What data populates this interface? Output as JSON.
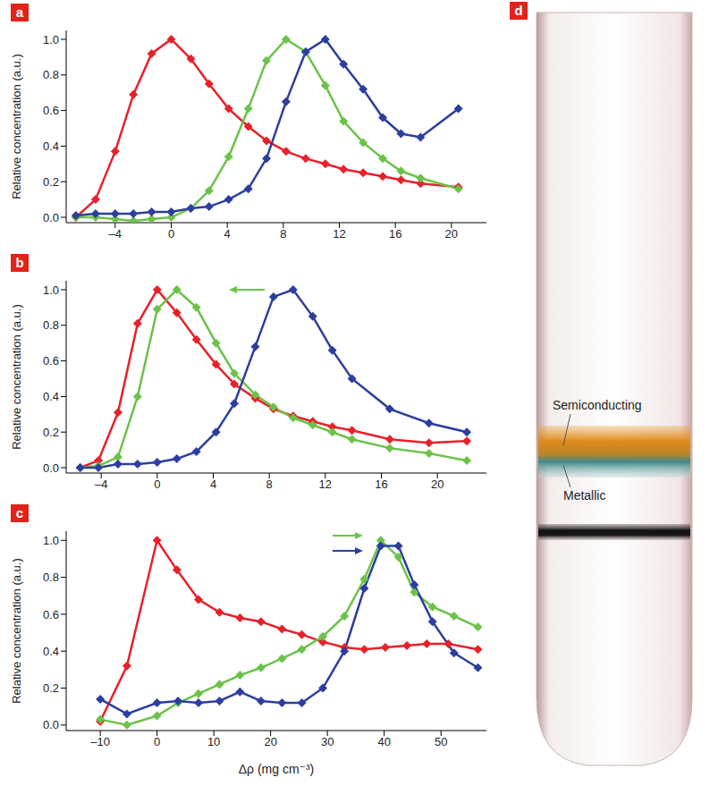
{
  "chart_data": [
    {
      "label": "a",
      "type": "line",
      "y_label": "Relative concentration (a.u.)",
      "xlim": [
        -7.5,
        22.5
      ],
      "xticks": [
        -4,
        0,
        4,
        8,
        12,
        16,
        20
      ],
      "ylim": [
        -0.03,
        1.05
      ],
      "yticks": [
        {
          "value": 0,
          "label": "0.0"
        },
        0.2,
        0.4,
        0.6,
        0.8,
        {
          "value": 1,
          "label": "1.0"
        }
      ],
      "series": [
        {
          "color": "#e8202a",
          "marker": "diamond",
          "x": [
            -6.8,
            -5.4,
            -4.0,
            -2.7,
            -1.4,
            0,
            1.4,
            2.7,
            4.1,
            5.5,
            6.8,
            8.2,
            9.6,
            11.0,
            12.3,
            13.7,
            15.1,
            16.4,
            17.8,
            20.5
          ],
          "values": [
            0.0,
            0.1,
            0.37,
            0.69,
            0.92,
            1.0,
            0.89,
            0.75,
            0.61,
            0.51,
            0.43,
            0.37,
            0.33,
            0.3,
            0.27,
            0.25,
            0.23,
            0.21,
            0.19,
            0.17
          ]
        },
        {
          "color": "#6cc24a",
          "marker": "diamond",
          "x": [
            -6.8,
            -5.4,
            -4.0,
            -2.7,
            -1.4,
            0,
            1.4,
            2.7,
            4.1,
            5.5,
            6.8,
            8.2,
            9.6,
            11.0,
            12.3,
            13.7,
            15.1,
            16.4,
            17.8,
            20.5
          ],
          "values": [
            0.0,
            0.0,
            -0.01,
            -0.02,
            -0.01,
            0.0,
            0.05,
            0.15,
            0.34,
            0.61,
            0.88,
            1.0,
            0.93,
            0.74,
            0.54,
            0.42,
            0.33,
            0.26,
            0.22,
            0.16
          ]
        },
        {
          "color": "#2c3e9e",
          "marker": "diamond",
          "x": [
            -6.8,
            -5.4,
            -4.0,
            -2.7,
            -1.4,
            0,
            1.4,
            2.7,
            4.1,
            5.5,
            6.8,
            8.2,
            9.6,
            11.0,
            12.3,
            13.7,
            15.1,
            16.4,
            17.8,
            20.5
          ],
          "values": [
            0.01,
            0.02,
            0.02,
            0.02,
            0.03,
            0.03,
            0.05,
            0.06,
            0.1,
            0.16,
            0.33,
            0.65,
            0.93,
            1.0,
            0.86,
            0.72,
            0.56,
            0.47,
            0.45,
            0.61
          ]
        }
      ]
    },
    {
      "label": "b",
      "type": "line",
      "y_label": "Relative concentration (a.u.)",
      "xlim": [
        -6.5,
        23.5
      ],
      "xticks": [
        -4,
        0,
        4,
        8,
        12,
        16,
        20
      ],
      "ylim": [
        -0.03,
        1.05
      ],
      "yticks": [
        {
          "value": 0,
          "label": "0.0"
        },
        0.2,
        0.4,
        0.6,
        0.8,
        {
          "value": 1,
          "label": "1.0"
        }
      ],
      "series": [
        {
          "color": "#e8202a",
          "marker": "diamond",
          "x": [
            -5.5,
            -4.2,
            -2.8,
            -1.4,
            0,
            1.4,
            2.8,
            4.2,
            5.5,
            7.0,
            8.3,
            9.7,
            11.1,
            12.5,
            13.9,
            16.6,
            19.4,
            22.1
          ],
          "values": [
            0.0,
            0.04,
            0.31,
            0.81,
            1.0,
            0.87,
            0.72,
            0.58,
            0.47,
            0.39,
            0.33,
            0.29,
            0.26,
            0.23,
            0.21,
            0.16,
            0.14,
            0.15
          ]
        },
        {
          "color": "#6cc24a",
          "marker": "diamond",
          "x": [
            -5.5,
            -4.2,
            -2.8,
            -1.4,
            0,
            1.4,
            2.8,
            4.2,
            5.5,
            7.0,
            8.3,
            9.7,
            11.1,
            12.5,
            13.9,
            16.6,
            19.4,
            22.1
          ],
          "values": [
            0.0,
            0.01,
            0.06,
            0.4,
            0.89,
            1.0,
            0.9,
            0.7,
            0.53,
            0.41,
            0.34,
            0.28,
            0.24,
            0.2,
            0.16,
            0.11,
            0.08,
            0.04
          ]
        },
        {
          "color": "#2c3e9e",
          "marker": "diamond",
          "x": [
            -5.5,
            -4.2,
            -2.8,
            -1.4,
            0,
            1.4,
            2.8,
            4.2,
            5.5,
            7.0,
            8.3,
            9.7,
            11.1,
            12.5,
            13.9,
            16.6,
            19.4,
            22.1
          ],
          "values": [
            0.0,
            0.0,
            0.02,
            0.02,
            0.03,
            0.05,
            0.09,
            0.2,
            0.36,
            0.68,
            0.96,
            1.0,
            0.85,
            0.66,
            0.5,
            0.33,
            0.25,
            0.2
          ]
        }
      ]
    },
    {
      "label": "c",
      "type": "line",
      "y_label": "Relative concentration (a.u.)",
      "x_label": "Δρ (mg cm⁻³)",
      "xlim": [
        -16,
        58
      ],
      "xticks": [
        -10,
        0,
        10,
        20,
        30,
        40,
        50
      ],
      "ylim": [
        -0.03,
        1.05
      ],
      "yticks": [
        {
          "value": 0,
          "label": "0.0"
        },
        0.2,
        0.4,
        0.6,
        0.8,
        {
          "value": 1,
          "label": "1.0"
        }
      ],
      "series": [
        {
          "color": "#e8202a",
          "marker": "diamond",
          "x": [
            -10,
            -5.3,
            0,
            3.5,
            7.3,
            11,
            14.6,
            18.3,
            22,
            25.5,
            29.2,
            33,
            36.5,
            40.2,
            44,
            47.5,
            51.3,
            56.5
          ],
          "values": [
            0.02,
            0.32,
            1.0,
            0.84,
            0.68,
            0.61,
            0.58,
            0.56,
            0.52,
            0.49,
            0.45,
            0.42,
            0.41,
            0.42,
            0.43,
            0.44,
            0.44,
            0.41
          ]
        },
        {
          "color": "#6cc24a",
          "marker": "diamond",
          "x": [
            -10,
            -5.3,
            0,
            3.7,
            7.3,
            11,
            14.6,
            18.3,
            22,
            25.5,
            29.2,
            33,
            36.5,
            39.4,
            42.5,
            45.3,
            48.5,
            52.3,
            56.5
          ],
          "values": [
            0.03,
            0.0,
            0.05,
            0.12,
            0.17,
            0.22,
            0.27,
            0.31,
            0.36,
            0.41,
            0.48,
            0.59,
            0.79,
            1.0,
            0.91,
            0.72,
            0.64,
            0.59,
            0.53
          ]
        },
        {
          "color": "#2c3e9e",
          "marker": "diamond",
          "x": [
            -10,
            -5.3,
            0,
            3.7,
            7.3,
            11,
            14.6,
            18.3,
            22,
            25.5,
            29.2,
            33,
            36.5,
            39.4,
            42.5,
            45.3,
            48.5,
            52.3,
            56.5
          ],
          "values": [
            0.14,
            0.06,
            0.12,
            0.13,
            0.12,
            0.13,
            0.18,
            0.13,
            0.12,
            0.12,
            0.2,
            0.4,
            0.74,
            0.97,
            0.97,
            0.76,
            0.56,
            0.39,
            0.31
          ]
        }
      ]
    }
  ],
  "photo": {
    "label": "d",
    "annotations": [
      "Semiconducting",
      "Metallic"
    ]
  }
}
